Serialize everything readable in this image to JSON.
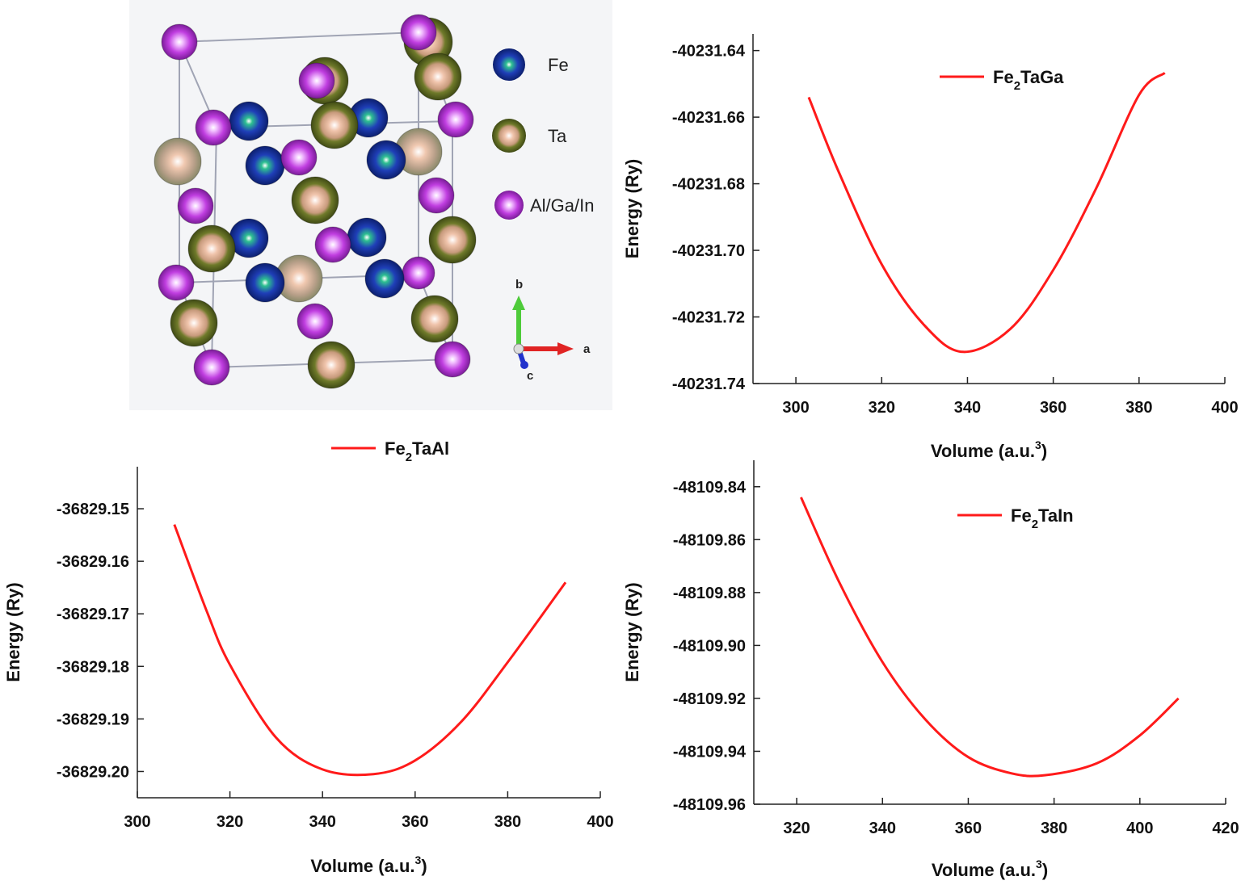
{
  "structure": {
    "legend": [
      {
        "label": "Fe",
        "color": "#1f3fb8"
      },
      {
        "label": "Ta",
        "color": "#6f7a2a"
      },
      {
        "label": "Al/Ga/In",
        "color": "#c03ee0"
      }
    ],
    "axes_labels": {
      "a": "a",
      "b": "b",
      "c": "c"
    }
  },
  "chart_data": [
    {
      "type": "line",
      "legend": {
        "prefix": "Fe",
        "sub": "2",
        "suffix": "TaGa"
      },
      "xlabel": {
        "main": "Volume (a.u.",
        "sup": "3",
        "close": ")"
      },
      "ylabel": "Energy (Ry)",
      "xlim": [
        290,
        400
      ],
      "ylim": [
        -40231.74,
        -40231.635
      ],
      "xticks": [
        300,
        320,
        340,
        360,
        380,
        400
      ],
      "yticks": [
        -40231.64,
        -40231.66,
        -40231.68,
        -40231.7,
        -40231.72,
        -40231.74
      ],
      "ytick_labels": [
        "-40231.64",
        "-40231.66",
        "-40231.68",
        "-40231.70",
        "-40231.72",
        "-40231.74"
      ],
      "series": [
        {
          "color": "#ff1a1a",
          "x": [
            303,
            310,
            320,
            330,
            339,
            350,
            360,
            370,
            380,
            386
          ],
          "y": [
            -40231.654,
            -40231.6765,
            -40231.7042,
            -40231.7226,
            -40231.7305,
            -40231.7236,
            -40231.7059,
            -40231.6814,
            -40231.6533,
            -40231.6467
          ]
        }
      ]
    },
    {
      "type": "line",
      "legend": {
        "prefix": "Fe",
        "sub": "2",
        "suffix": "TaAl"
      },
      "xlabel": {
        "main": "Volume (a.u.",
        "sup": "3",
        "close": ")"
      },
      "ylabel": "Energy (Ry)",
      "xlim": [
        300,
        400
      ],
      "ylim": [
        -36829.205,
        -36829.142
      ],
      "xticks": [
        300,
        320,
        340,
        360,
        380,
        400
      ],
      "yticks": [
        -36829.15,
        -36829.16,
        -36829.17,
        -36829.18,
        -36829.19,
        -36829.2
      ],
      "ytick_labels": [
        "-36829.15",
        "-36829.16",
        "-36829.17",
        "-36829.18",
        "-36829.19",
        "-36829.20"
      ],
      "series": [
        {
          "color": "#ff1a1a",
          "x": [
            308,
            315,
            320,
            330,
            340,
            351,
            360,
            370,
            380,
            392.5
          ],
          "y": [
            -36829.153,
            -36829.1695,
            -36829.1797,
            -36829.1936,
            -36829.1996,
            -36829.2005,
            -36829.1979,
            -36829.1905,
            -36829.1792,
            -36829.164
          ]
        }
      ]
    },
    {
      "type": "line",
      "legend": {
        "prefix": "Fe",
        "sub": "2",
        "suffix": "TaIn"
      },
      "xlabel": {
        "main": "Volume (a.u.",
        "sup": "3",
        "close": ")"
      },
      "ylabel": "Energy (Ry)",
      "xlim": [
        310,
        420
      ],
      "ylim": [
        -48109.96,
        -48109.83
      ],
      "xticks": [
        320,
        340,
        360,
        380,
        400,
        420
      ],
      "yticks": [
        -48109.84,
        -48109.86,
        -48109.88,
        -48109.9,
        -48109.92,
        -48109.94,
        -48109.96
      ],
      "ytick_labels": [
        "-48109.84",
        "-48109.86",
        "-48109.88",
        "-48109.90",
        "-48109.92",
        "-48109.94",
        "-48109.96"
      ],
      "series": [
        {
          "color": "#ff1a1a",
          "x": [
            321,
            330,
            340,
            350,
            360,
            370,
            378,
            390,
            400,
            409
          ],
          "y": [
            -48109.844,
            -48109.8764,
            -48109.9063,
            -48109.928,
            -48109.9422,
            -48109.9483,
            -48109.949,
            -48109.9445,
            -48109.934,
            -48109.92
          ]
        }
      ]
    }
  ]
}
